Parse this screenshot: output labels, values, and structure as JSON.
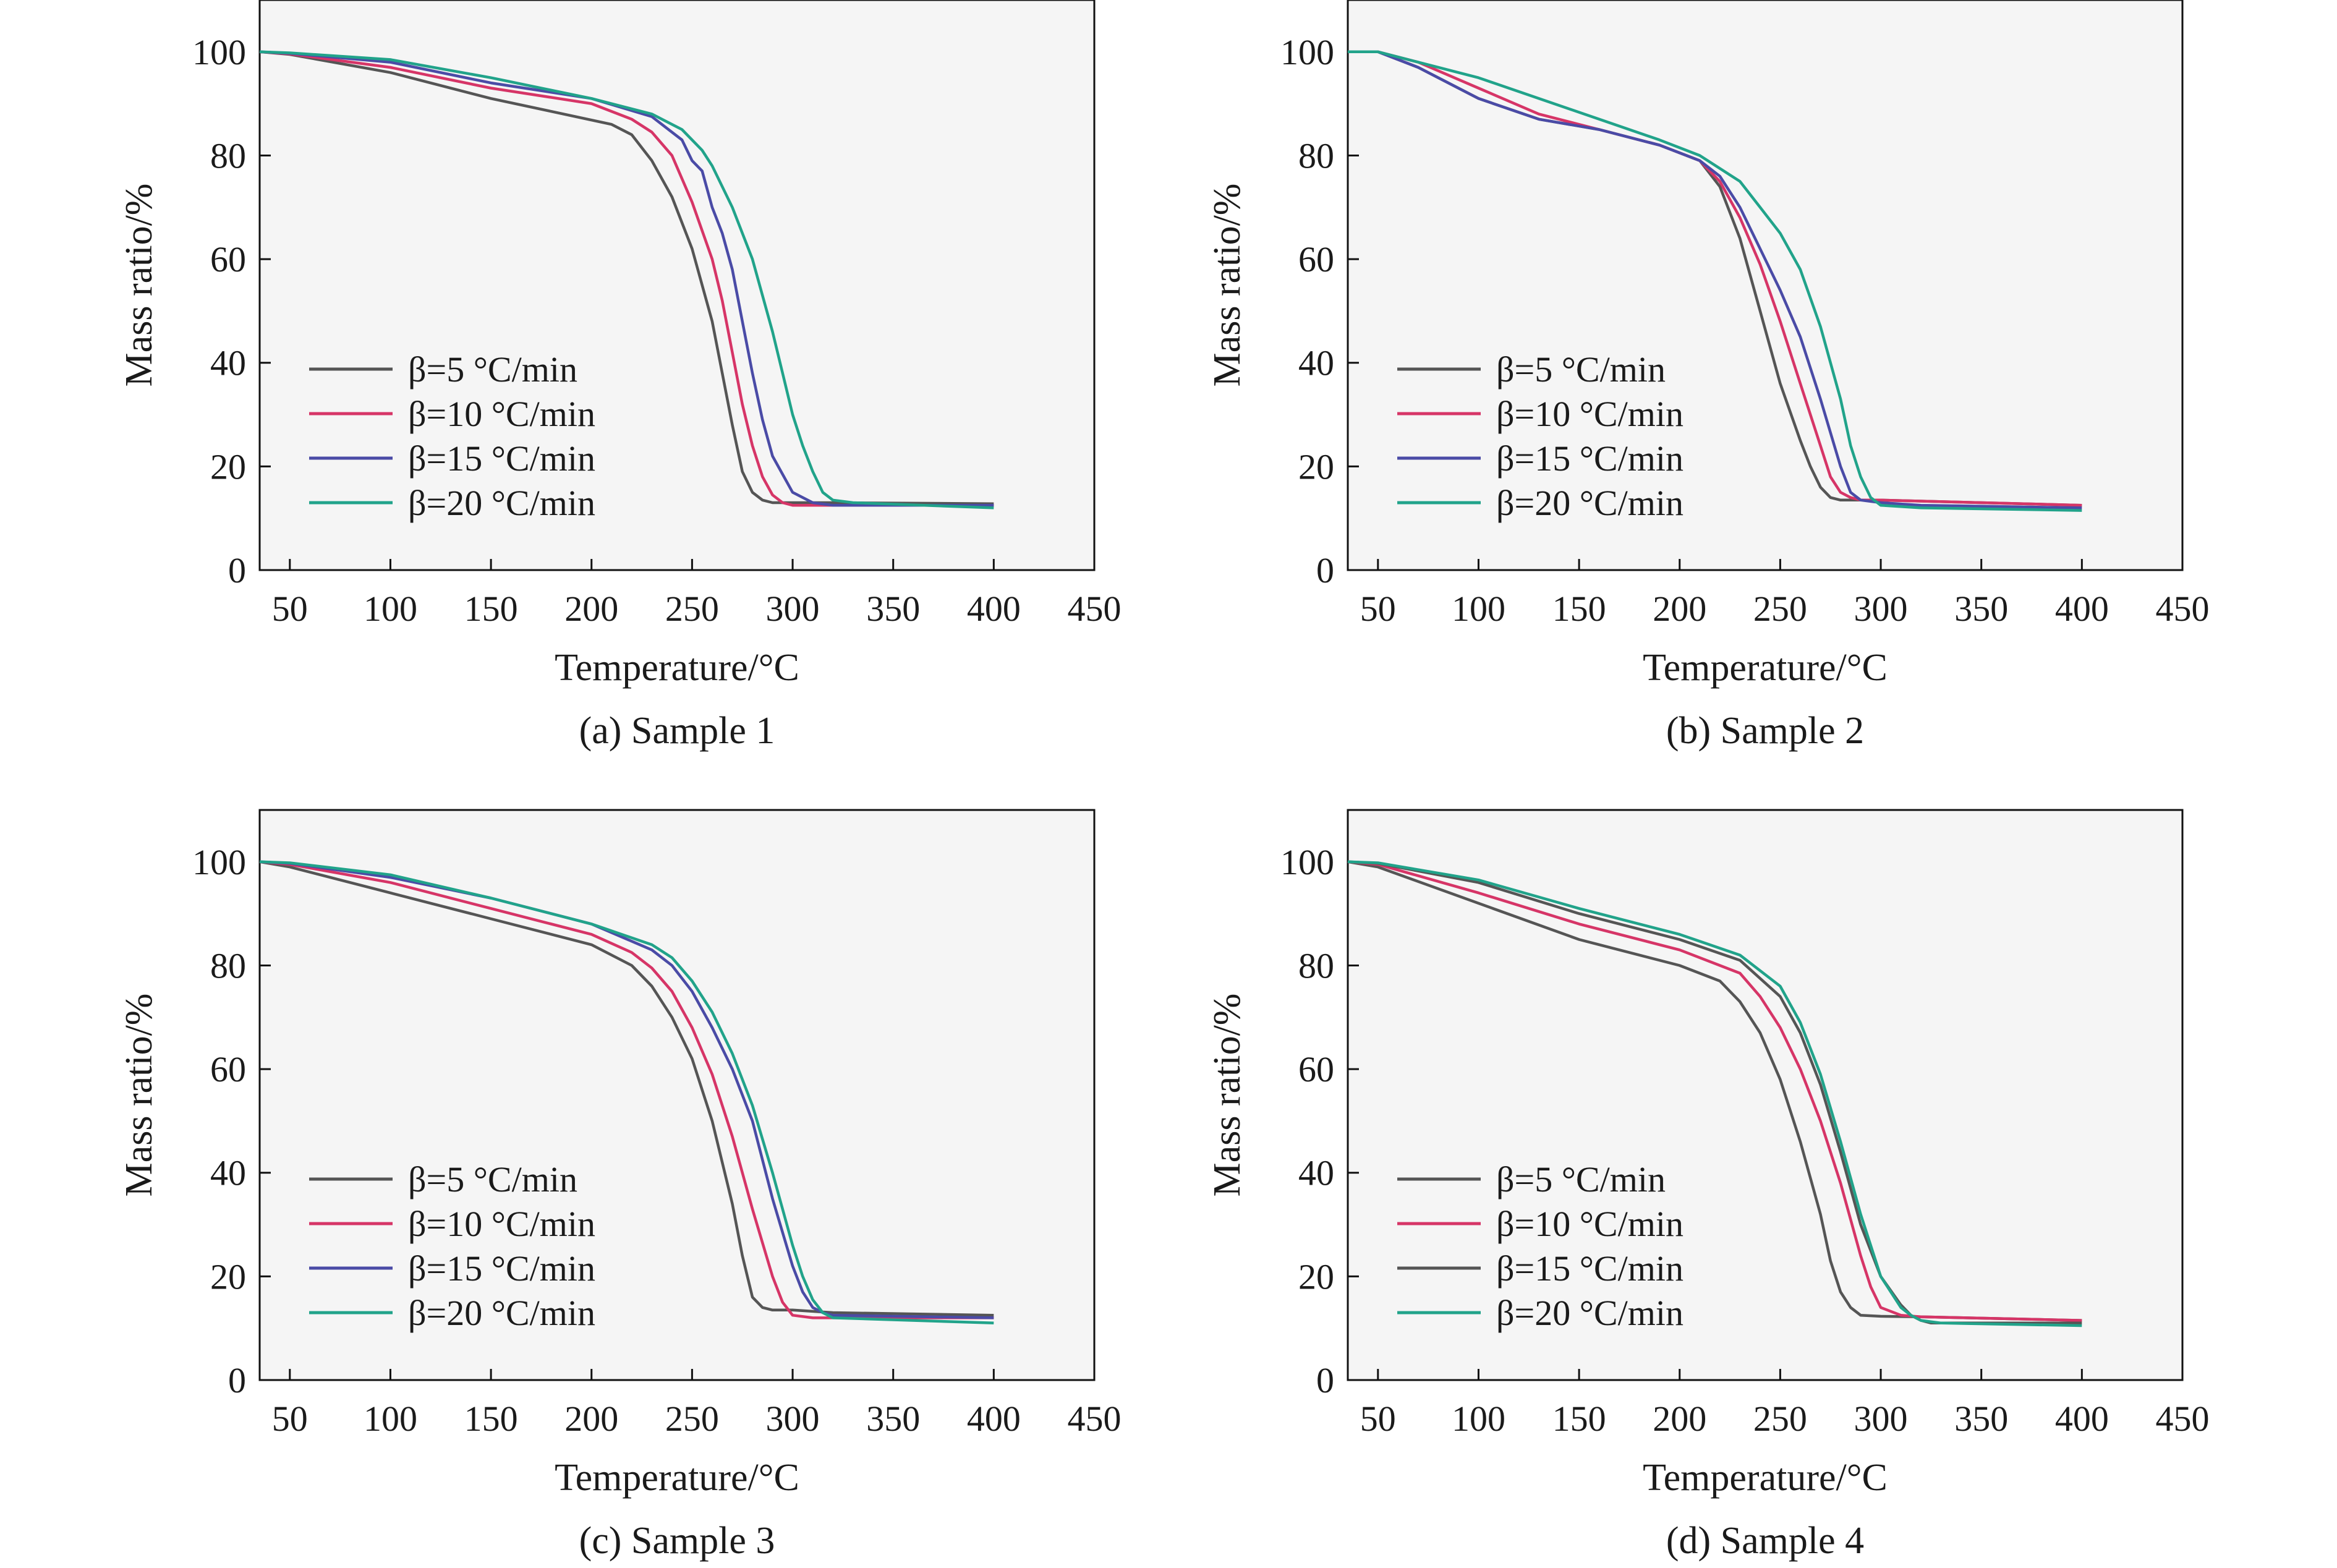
{
  "chart_data": [
    {
      "type": "line",
      "caption": "(a) Sample 1",
      "xlabel": "Temperature/°C",
      "ylabel": "Mass ratio/%",
      "xlim": [
        35,
        450
      ],
      "ylim": [
        0,
        110
      ],
      "xticks": [
        50,
        100,
        150,
        200,
        250,
        300,
        350,
        400,
        450
      ],
      "yticks": [
        0,
        20,
        40,
        60,
        80,
        100
      ],
      "legend_position": "bottom-left",
      "series": [
        {
          "name": "β=5 °C/min",
          "color": "#555555",
          "x": [
            35,
            50,
            100,
            150,
            180,
            210,
            220,
            230,
            240,
            250,
            260,
            265,
            270,
            275,
            280,
            285,
            290,
            300,
            320,
            400
          ],
          "y": [
            100,
            99.5,
            96,
            91,
            88.5,
            86,
            84,
            79,
            72,
            62,
            48,
            38,
            28,
            19,
            15,
            13.5,
            13,
            13,
            13,
            12.8
          ]
        },
        {
          "name": "β=10 °C/min",
          "color": "#d63567",
          "x": [
            35,
            50,
            100,
            150,
            200,
            220,
            230,
            240,
            250,
            260,
            265,
            270,
            275,
            280,
            285,
            290,
            295,
            300,
            320,
            400
          ],
          "y": [
            100,
            99.6,
            97,
            93,
            90,
            87,
            84.5,
            80,
            71,
            60,
            52,
            42,
            32,
            24,
            18,
            14.5,
            13,
            12.5,
            12.5,
            12.5
          ]
        },
        {
          "name": "β=15 °C/min",
          "color": "#4a4ba6",
          "x": [
            35,
            50,
            100,
            150,
            200,
            230,
            245,
            250,
            255,
            260,
            265,
            270,
            275,
            280,
            285,
            290,
            300,
            310,
            320,
            400
          ],
          "y": [
            100,
            99.7,
            98,
            94,
            91,
            87.5,
            83,
            79,
            77,
            70,
            65,
            58,
            48,
            38,
            29,
            22,
            15,
            13,
            12.5,
            12.5
          ]
        },
        {
          "name": "β=20 °C/min",
          "color": "#21a38a",
          "x": [
            35,
            50,
            100,
            150,
            200,
            230,
            245,
            255,
            260,
            270,
            280,
            290,
            295,
            300,
            305,
            310,
            315,
            320,
            330,
            400
          ],
          "y": [
            100,
            99.8,
            98.5,
            95,
            91,
            88,
            85,
            81,
            78,
            70,
            60,
            46,
            38,
            30,
            24,
            19,
            15,
            13.5,
            13,
            12
          ]
        }
      ]
    },
    {
      "type": "line",
      "caption": "(b) Sample 2",
      "xlabel": "Temperature/°C",
      "ylabel": "Mass ratio/%",
      "xlim": [
        35,
        450
      ],
      "ylim": [
        0,
        110
      ],
      "xticks": [
        50,
        100,
        150,
        200,
        250,
        300,
        350,
        400,
        450
      ],
      "yticks": [
        0,
        20,
        40,
        60,
        80,
        100
      ],
      "legend_position": "bottom-left",
      "series": [
        {
          "name": "β=5 °C/min",
          "color": "#555555",
          "x": [
            35,
            50,
            70,
            100,
            130,
            160,
            190,
            210,
            220,
            230,
            240,
            250,
            260,
            265,
            270,
            275,
            280,
            290,
            300,
            400
          ],
          "y": [
            100,
            100,
            97,
            91,
            87,
            85,
            82,
            79,
            74,
            64,
            50,
            36,
            25,
            20,
            16,
            14,
            13.5,
            13.5,
            13.5,
            12.5
          ]
        },
        {
          "name": "β=10 °C/min",
          "color": "#d63567",
          "x": [
            35,
            50,
            70,
            100,
            130,
            160,
            190,
            210,
            220,
            230,
            240,
            250,
            260,
            270,
            275,
            280,
            285,
            290,
            300,
            400
          ],
          "y": [
            100,
            100,
            98,
            93,
            88,
            85,
            82,
            79,
            75,
            68,
            59,
            48,
            36,
            24,
            18,
            15,
            14,
            13.5,
            13.5,
            12.5
          ]
        },
        {
          "name": "β=15 °C/min",
          "color": "#4a4ba6",
          "x": [
            35,
            50,
            70,
            100,
            130,
            160,
            190,
            210,
            220,
            230,
            240,
            250,
            260,
            270,
            280,
            285,
            290,
            300,
            320,
            400
          ],
          "y": [
            100,
            100,
            97,
            91,
            87,
            85,
            82,
            79,
            76,
            70,
            62,
            54,
            45,
            33,
            20,
            15,
            13.5,
            13,
            12.5,
            12
          ]
        },
        {
          "name": "β=20 °C/min",
          "color": "#21a38a",
          "x": [
            35,
            50,
            70,
            100,
            130,
            160,
            190,
            210,
            230,
            240,
            250,
            260,
            270,
            280,
            285,
            290,
            295,
            300,
            320,
            400
          ],
          "y": [
            100,
            100,
            98,
            95,
            91,
            87,
            83,
            80,
            75,
            70,
            65,
            58,
            47,
            33,
            24,
            18,
            14,
            12.5,
            12,
            11.5
          ]
        }
      ]
    },
    {
      "type": "line",
      "caption": "(c) Sample 3",
      "xlabel": "Temperature/°C",
      "ylabel": "Mass ratio/%",
      "xlim": [
        35,
        450
      ],
      "ylim": [
        0,
        110
      ],
      "xticks": [
        50,
        100,
        150,
        200,
        250,
        300,
        350,
        400,
        450
      ],
      "yticks": [
        0,
        20,
        40,
        60,
        80,
        100
      ],
      "legend_position": "bottom-left",
      "series": [
        {
          "name": "β=5 °C/min",
          "color": "#555555",
          "x": [
            35,
            50,
            100,
            150,
            200,
            220,
            230,
            240,
            250,
            260,
            270,
            275,
            280,
            285,
            290,
            300,
            320,
            400
          ],
          "y": [
            100,
            99,
            94,
            89,
            84,
            80,
            76,
            70,
            62,
            50,
            34,
            24,
            16,
            14,
            13.5,
            13.5,
            13,
            12.5
          ]
        },
        {
          "name": "β=10 °C/min",
          "color": "#d63567",
          "x": [
            35,
            50,
            100,
            150,
            200,
            220,
            230,
            240,
            250,
            260,
            270,
            280,
            290,
            295,
            300,
            310,
            320,
            400
          ],
          "y": [
            100,
            99.5,
            96,
            91,
            86,
            82.5,
            79.5,
            75,
            68,
            59,
            47,
            33,
            20,
            15,
            12.5,
            12,
            12,
            12
          ]
        },
        {
          "name": "β=15 °C/min",
          "color": "#4a4ba6",
          "x": [
            35,
            50,
            100,
            150,
            200,
            230,
            240,
            250,
            260,
            270,
            280,
            290,
            300,
            305,
            310,
            315,
            320,
            400
          ],
          "y": [
            100,
            99.7,
            97,
            93,
            88,
            83,
            80,
            75,
            68,
            60,
            50,
            35,
            22,
            17,
            14,
            13,
            12.5,
            12
          ]
        },
        {
          "name": "β=20 °C/min",
          "color": "#21a38a",
          "x": [
            35,
            50,
            100,
            150,
            200,
            230,
            240,
            250,
            260,
            270,
            280,
            290,
            300,
            305,
            310,
            315,
            320,
            400
          ],
          "y": [
            100,
            99.8,
            97.5,
            93,
            88,
            84,
            81.5,
            77,
            71,
            63,
            53,
            40,
            26,
            20,
            15.5,
            13,
            12,
            11
          ]
        }
      ]
    },
    {
      "type": "line",
      "caption": "(d) Sample 4",
      "xlabel": "Temperature/°C",
      "ylabel": "Mass ratio/%",
      "xlim": [
        35,
        450
      ],
      "ylim": [
        0,
        110
      ],
      "xticks": [
        50,
        100,
        150,
        200,
        250,
        300,
        350,
        400,
        450
      ],
      "yticks": [
        0,
        20,
        40,
        60,
        80,
        100
      ],
      "legend_position": "bottom-left",
      "series": [
        {
          "name": "β=5 °C/min",
          "color": "#555555",
          "x": [
            35,
            50,
            100,
            150,
            200,
            220,
            230,
            240,
            250,
            260,
            270,
            275,
            280,
            285,
            290,
            300,
            320,
            400
          ],
          "y": [
            100,
            99,
            92,
            85,
            80,
            77,
            73,
            67,
            58,
            46,
            32,
            23,
            17,
            14,
            12.5,
            12.3,
            12.2,
            11.5
          ]
        },
        {
          "name": "β=10 °C/min",
          "color": "#d63567",
          "x": [
            35,
            50,
            100,
            150,
            200,
            230,
            240,
            250,
            260,
            270,
            280,
            290,
            295,
            300,
            310,
            320,
            400
          ],
          "y": [
            100,
            99.5,
            94,
            88,
            83,
            78.5,
            74,
            68,
            60,
            50,
            38,
            24,
            18,
            14,
            12.5,
            12.2,
            11.5
          ]
        },
        {
          "name": "β=15 °C/min",
          "color": "#555555",
          "x": [
            35,
            50,
            100,
            150,
            200,
            230,
            250,
            260,
            270,
            280,
            290,
            300,
            310,
            315,
            320,
            325,
            400
          ],
          "y": [
            100,
            99.7,
            96,
            90,
            85,
            81,
            74,
            67,
            57,
            44,
            30,
            20,
            14.5,
            12.5,
            11.5,
            11,
            11
          ]
        },
        {
          "name": "β=20 °C/min",
          "color": "#21a38a",
          "x": [
            35,
            50,
            100,
            150,
            200,
            230,
            250,
            260,
            270,
            280,
            290,
            300,
            310,
            315,
            320,
            330,
            400
          ],
          "y": [
            100,
            99.8,
            96.5,
            91,
            86,
            82,
            76,
            69,
            59,
            46,
            32,
            20,
            14,
            12.5,
            11.5,
            11,
            10.5
          ]
        }
      ]
    }
  ]
}
